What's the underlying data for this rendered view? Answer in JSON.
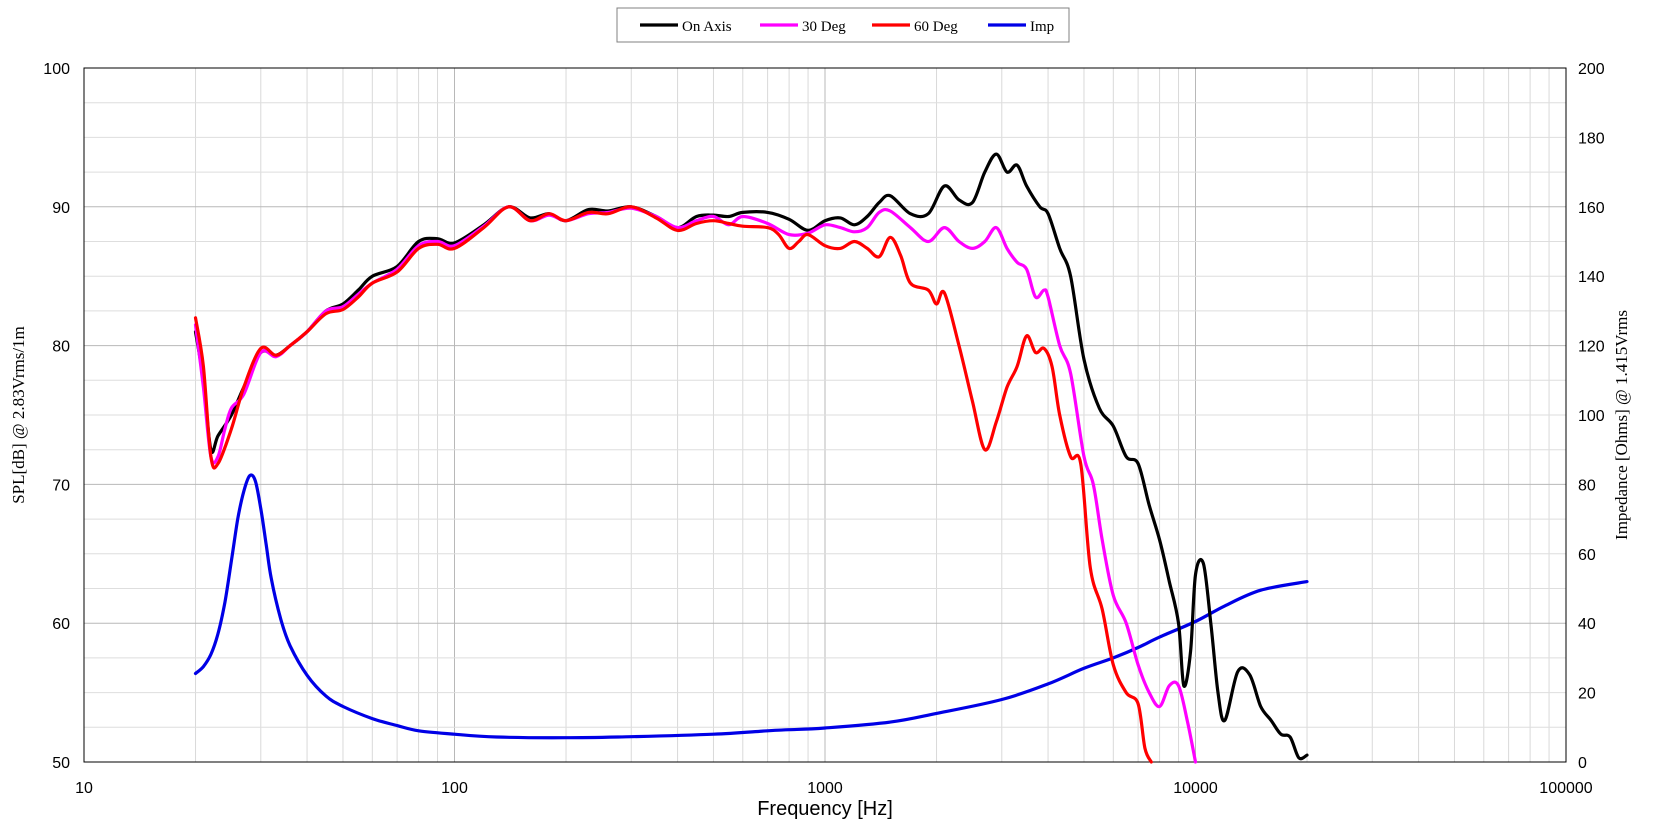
{
  "chart_data": {
    "type": "line",
    "xscale": "log",
    "xlim": [
      10,
      100000
    ],
    "xticks": [
      "10",
      "100",
      "1000",
      "10000",
      "100000"
    ],
    "xlabel": "Frequency [Hz]",
    "ylabel": "SPL[dB] @ 2.83Vrms/1m",
    "ylim": [
      50,
      100
    ],
    "yticks": [
      "50",
      "60",
      "70",
      "80",
      "90",
      "100"
    ],
    "y2label": "Impedance [Ohms] @ 1.415Vrms",
    "y2lim": [
      0,
      200
    ],
    "y2ticks": [
      "0",
      "20",
      "40",
      "60",
      "80",
      "100",
      "120",
      "140",
      "160",
      "180",
      "200"
    ],
    "grid": true,
    "legend_position": "top-center",
    "series": [
      {
        "name": "On Axis",
        "color": "#000000",
        "axis": "left",
        "points": [
          [
            20,
            81.0
          ],
          [
            21,
            77.5
          ],
          [
            22,
            72.5
          ],
          [
            23,
            73.5
          ],
          [
            25,
            75.0
          ],
          [
            27,
            77.0
          ],
          [
            30,
            79.5
          ],
          [
            33,
            79.3
          ],
          [
            36,
            80.0
          ],
          [
            40,
            81.0
          ],
          [
            45,
            82.5
          ],
          [
            50,
            83.0
          ],
          [
            55,
            84.0
          ],
          [
            60,
            85.0
          ],
          [
            70,
            85.7
          ],
          [
            80,
            87.5
          ],
          [
            90,
            87.7
          ],
          [
            100,
            87.4
          ],
          [
            120,
            88.7
          ],
          [
            140,
            90.0
          ],
          [
            160,
            89.2
          ],
          [
            180,
            89.5
          ],
          [
            200,
            89.0
          ],
          [
            230,
            89.8
          ],
          [
            260,
            89.7
          ],
          [
            300,
            90.0
          ],
          [
            350,
            89.3
          ],
          [
            400,
            88.5
          ],
          [
            450,
            89.3
          ],
          [
            500,
            89.4
          ],
          [
            550,
            89.3
          ],
          [
            600,
            89.6
          ],
          [
            700,
            89.6
          ],
          [
            800,
            89.1
          ],
          [
            900,
            88.3
          ],
          [
            1000,
            89.0
          ],
          [
            1100,
            89.2
          ],
          [
            1200,
            88.7
          ],
          [
            1300,
            89.3
          ],
          [
            1400,
            90.3
          ],
          [
            1500,
            90.8
          ],
          [
            1700,
            89.5
          ],
          [
            1900,
            89.5
          ],
          [
            2100,
            91.5
          ],
          [
            2300,
            90.5
          ],
          [
            2500,
            90.3
          ],
          [
            2700,
            92.5
          ],
          [
            2900,
            93.8
          ],
          [
            3100,
            92.5
          ],
          [
            3300,
            93.0
          ],
          [
            3500,
            91.5
          ],
          [
            3800,
            90.0
          ],
          [
            4000,
            89.5
          ],
          [
            4300,
            87.0
          ],
          [
            4600,
            85.0
          ],
          [
            5000,
            79.0
          ],
          [
            5500,
            75.5
          ],
          [
            6000,
            74.2
          ],
          [
            6500,
            72.0
          ],
          [
            7000,
            71.5
          ],
          [
            7500,
            68.5
          ],
          [
            8000,
            66.0
          ],
          [
            8500,
            63.0
          ],
          [
            9000,
            60.0
          ],
          [
            9300,
            55.5
          ],
          [
            9700,
            58.0
          ],
          [
            10000,
            63.5
          ],
          [
            10500,
            64.3
          ],
          [
            11000,
            60.0
          ],
          [
            11500,
            55.0
          ],
          [
            12000,
            53.0
          ],
          [
            13000,
            56.5
          ],
          [
            14000,
            56.3
          ],
          [
            15000,
            54.0
          ],
          [
            16000,
            53.0
          ],
          [
            17000,
            52.0
          ],
          [
            18000,
            51.8
          ],
          [
            19000,
            50.3
          ],
          [
            20000,
            50.5
          ]
        ]
      },
      {
        "name": "30 Deg",
        "color": "#ff00ff",
        "axis": "left",
        "points": [
          [
            20,
            81.5
          ],
          [
            21,
            77.0
          ],
          [
            22,
            72.0
          ],
          [
            23,
            72.0
          ],
          [
            24,
            74.0
          ],
          [
            25,
            75.5
          ],
          [
            27,
            76.5
          ],
          [
            30,
            79.5
          ],
          [
            33,
            79.2
          ],
          [
            36,
            80.0
          ],
          [
            40,
            81.0
          ],
          [
            45,
            82.5
          ],
          [
            50,
            82.8
          ],
          [
            55,
            83.7
          ],
          [
            60,
            84.5
          ],
          [
            70,
            85.5
          ],
          [
            80,
            87.2
          ],
          [
            90,
            87.5
          ],
          [
            100,
            87.2
          ],
          [
            120,
            88.6
          ],
          [
            140,
            90.0
          ],
          [
            160,
            89.0
          ],
          [
            180,
            89.4
          ],
          [
            200,
            89.0
          ],
          [
            230,
            89.5
          ],
          [
            260,
            89.6
          ],
          [
            300,
            89.9
          ],
          [
            350,
            89.3
          ],
          [
            400,
            88.5
          ],
          [
            450,
            89.0
          ],
          [
            500,
            89.3
          ],
          [
            550,
            88.7
          ],
          [
            600,
            89.3
          ],
          [
            700,
            88.8
          ],
          [
            800,
            88.0
          ],
          [
            900,
            88.1
          ],
          [
            1000,
            88.7
          ],
          [
            1100,
            88.5
          ],
          [
            1200,
            88.2
          ],
          [
            1300,
            88.5
          ],
          [
            1400,
            89.6
          ],
          [
            1500,
            89.7
          ],
          [
            1700,
            88.5
          ],
          [
            1900,
            87.5
          ],
          [
            2100,
            88.5
          ],
          [
            2300,
            87.5
          ],
          [
            2500,
            87.0
          ],
          [
            2700,
            87.5
          ],
          [
            2900,
            88.5
          ],
          [
            3100,
            87.0
          ],
          [
            3300,
            86.0
          ],
          [
            3500,
            85.5
          ],
          [
            3700,
            83.5
          ],
          [
            3900,
            84.0
          ],
          [
            4000,
            83.5
          ],
          [
            4300,
            80.0
          ],
          [
            4600,
            78.0
          ],
          [
            5000,
            72.0
          ],
          [
            5300,
            70.0
          ],
          [
            5600,
            66.0
          ],
          [
            6000,
            62.0
          ],
          [
            6500,
            60.0
          ],
          [
            7000,
            57.0
          ],
          [
            7500,
            55.0
          ],
          [
            8000,
            54.0
          ],
          [
            8500,
            55.5
          ],
          [
            9000,
            55.5
          ],
          [
            9500,
            53.0
          ],
          [
            10000,
            50.0
          ]
        ]
      },
      {
        "name": "60 Deg",
        "color": "#ff0000",
        "axis": "left",
        "points": [
          [
            20,
            82.0
          ],
          [
            21,
            78.5
          ],
          [
            22,
            72.0
          ],
          [
            23,
            71.5
          ],
          [
            25,
            74.0
          ],
          [
            27,
            77.0
          ],
          [
            30,
            79.8
          ],
          [
            33,
            79.3
          ],
          [
            36,
            80.0
          ],
          [
            40,
            81.0
          ],
          [
            45,
            82.3
          ],
          [
            50,
            82.6
          ],
          [
            55,
            83.5
          ],
          [
            60,
            84.5
          ],
          [
            70,
            85.3
          ],
          [
            80,
            87.0
          ],
          [
            90,
            87.3
          ],
          [
            100,
            87.0
          ],
          [
            120,
            88.5
          ],
          [
            140,
            90.0
          ],
          [
            160,
            89.0
          ],
          [
            180,
            89.5
          ],
          [
            200,
            89.0
          ],
          [
            230,
            89.6
          ],
          [
            260,
            89.5
          ],
          [
            300,
            90.0
          ],
          [
            350,
            89.2
          ],
          [
            400,
            88.3
          ],
          [
            450,
            88.8
          ],
          [
            500,
            89.0
          ],
          [
            550,
            88.8
          ],
          [
            600,
            88.6
          ],
          [
            700,
            88.5
          ],
          [
            750,
            88.0
          ],
          [
            800,
            87.0
          ],
          [
            850,
            87.5
          ],
          [
            900,
            88.0
          ],
          [
            1000,
            87.2
          ],
          [
            1100,
            87.0
          ],
          [
            1200,
            87.5
          ],
          [
            1300,
            87.0
          ],
          [
            1400,
            86.4
          ],
          [
            1500,
            87.8
          ],
          [
            1600,
            86.5
          ],
          [
            1700,
            84.5
          ],
          [
            1900,
            84.0
          ],
          [
            2000,
            83.0
          ],
          [
            2100,
            83.8
          ],
          [
            2300,
            80.0
          ],
          [
            2500,
            76.0
          ],
          [
            2700,
            72.5
          ],
          [
            2900,
            74.5
          ],
          [
            3100,
            77.0
          ],
          [
            3300,
            78.5
          ],
          [
            3500,
            80.7
          ],
          [
            3700,
            79.5
          ],
          [
            3900,
            79.8
          ],
          [
            4100,
            78.5
          ],
          [
            4300,
            75.0
          ],
          [
            4600,
            72.0
          ],
          [
            4900,
            71.5
          ],
          [
            5200,
            64.0
          ],
          [
            5600,
            61.0
          ],
          [
            6000,
            57.0
          ],
          [
            6500,
            55.0
          ],
          [
            7000,
            54.2
          ],
          [
            7300,
            51.0
          ],
          [
            7600,
            50.0
          ]
        ]
      },
      {
        "name": "Imp",
        "color": "#0000e6",
        "axis": "right",
        "points": [
          [
            20,
            25.5
          ],
          [
            21,
            27.5
          ],
          [
            22,
            31.0
          ],
          [
            23,
            37.0
          ],
          [
            24,
            46.0
          ],
          [
            25,
            58.0
          ],
          [
            26,
            70.0
          ],
          [
            27,
            78.0
          ],
          [
            28,
            82.5
          ],
          [
            29,
            81.0
          ],
          [
            30,
            73.0
          ],
          [
            31,
            63.0
          ],
          [
            32,
            53.0
          ],
          [
            34,
            41.0
          ],
          [
            36,
            33.5
          ],
          [
            40,
            25.0
          ],
          [
            45,
            19.0
          ],
          [
            50,
            16.0
          ],
          [
            60,
            12.5
          ],
          [
            70,
            10.5
          ],
          [
            80,
            9.0
          ],
          [
            100,
            8.0
          ],
          [
            130,
            7.2
          ],
          [
            200,
            7.0
          ],
          [
            300,
            7.3
          ],
          [
            500,
            8.0
          ],
          [
            700,
            9.0
          ],
          [
            800,
            9.3
          ],
          [
            1000,
            9.8
          ],
          [
            1500,
            11.5
          ],
          [
            2000,
            14.0
          ],
          [
            3000,
            18.0
          ],
          [
            4000,
            22.5
          ],
          [
            5000,
            27.0
          ],
          [
            6000,
            30.0
          ],
          [
            7000,
            33.0
          ],
          [
            8000,
            36.0
          ],
          [
            10000,
            40.5
          ],
          [
            12000,
            45.0
          ],
          [
            15000,
            49.5
          ],
          [
            20000,
            52.0
          ]
        ]
      }
    ]
  }
}
